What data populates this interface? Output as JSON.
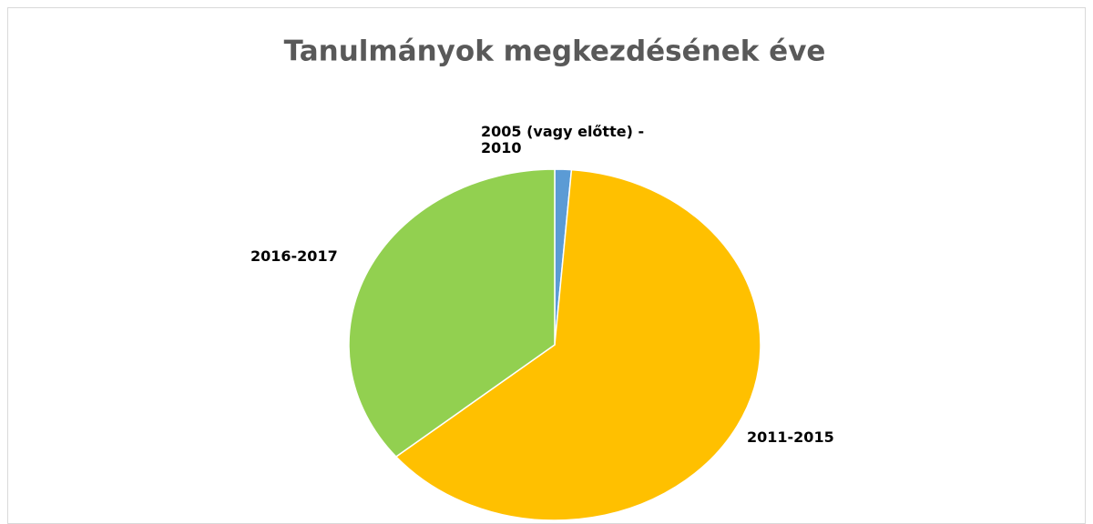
{
  "chart_data": {
    "type": "pie",
    "title": "Tanulmányok megkezdésének éve",
    "categories": [
      "2005 (vagy előtte) - 2010",
      "2011-2015",
      "2016-2017"
    ],
    "values": [
      1.3,
      62.7,
      36.0
    ],
    "colors": [
      "#5b9bd5",
      "#ffc000",
      "#92d050"
    ]
  }
}
